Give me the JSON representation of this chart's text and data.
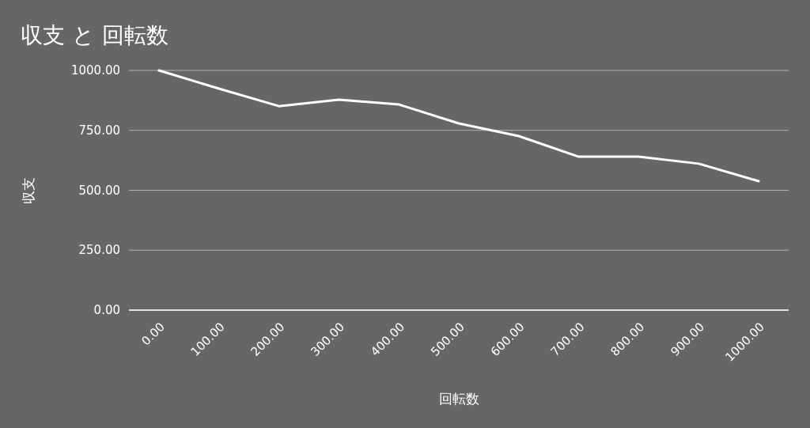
{
  "chart_data": {
    "type": "line",
    "title": "収支 と 回転数",
    "xlabel": "回転数",
    "ylabel": "収支",
    "categories": [
      "0.00",
      "100.00",
      "200.00",
      "300.00",
      "400.00",
      "500.00",
      "600.00",
      "700.00",
      "800.00",
      "900.00",
      "1000.00"
    ],
    "series": [
      {
        "color": "#ffffff",
        "values": [
          1000,
          924,
          851,
          878,
          858,
          779,
          726,
          640,
          640,
          611,
          538
        ]
      }
    ],
    "ylim": [
      0,
      1000
    ],
    "yticks": [
      {
        "value": 0,
        "label": "0.00"
      },
      {
        "value": 250,
        "label": "250.00"
      },
      {
        "value": 500,
        "label": "500.00"
      },
      {
        "value": 750,
        "label": "750.00"
      },
      {
        "value": 1000,
        "label": "1000.00"
      }
    ],
    "grid": "y",
    "marker": "none",
    "line_style": "solid"
  }
}
